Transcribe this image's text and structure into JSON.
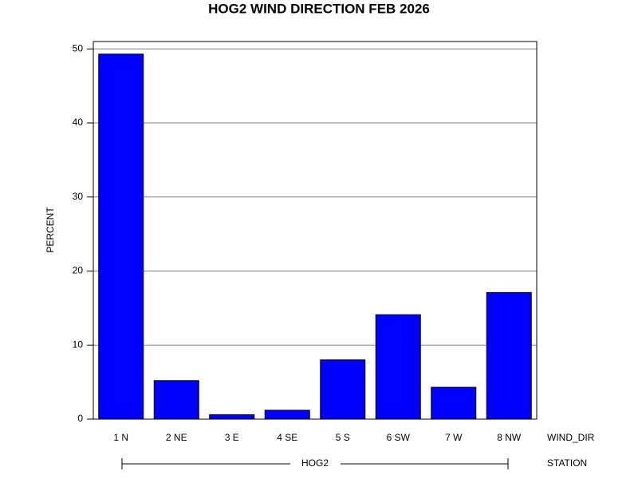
{
  "chart_data": {
    "type": "bar",
    "title": "HOG2 WIND DIRECTION FEB 2026",
    "y_label": "PERCENT",
    "x_label": "WIND_DIR",
    "group_label": "HOG2",
    "group_axis_label": "STATION",
    "categories": [
      "1 N",
      "2 NE",
      "3 E",
      "4 SE",
      "5 S",
      "6 SW",
      "7 W",
      "8 NW"
    ],
    "values": [
      49.3,
      5.2,
      0.6,
      1.2,
      8.0,
      14.1,
      4.3,
      17.1
    ],
    "color": "#0000ff",
    "ylim": [
      0,
      51
    ],
    "yticks": [
      0,
      10,
      20,
      30,
      40,
      50
    ],
    "grid": true
  }
}
